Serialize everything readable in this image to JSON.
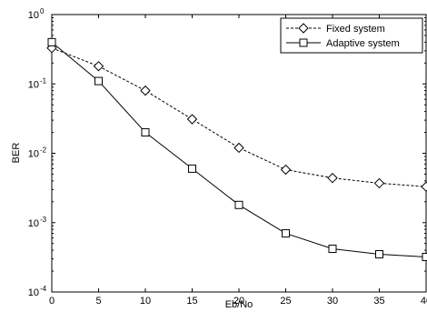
{
  "chart_data": {
    "type": "line",
    "xlabel": "Eb/No",
    "ylabel": "BER",
    "x": [
      0,
      5,
      10,
      15,
      20,
      25,
      30,
      35,
      40
    ],
    "xlim": [
      0,
      40
    ],
    "ylim": [
      0.0001,
      1
    ],
    "y_scale": "log",
    "grid": false,
    "legend_position": "top-right",
    "x_ticks": [
      "0",
      "5",
      "10",
      "15",
      "20",
      "25",
      "30",
      "35",
      "40"
    ],
    "y_ticks": [
      {
        "base": "10",
        "exp": "0",
        "value": 1
      },
      {
        "base": "10",
        "exp": "-1",
        "value": 0.1
      },
      {
        "base": "10",
        "exp": "-2",
        "value": 0.01
      },
      {
        "base": "10",
        "exp": "-3",
        "value": 0.001
      },
      {
        "base": "10",
        "exp": "-4",
        "value": 0.0001
      }
    ],
    "series": [
      {
        "name": "Fixed system",
        "line_style": "dashed",
        "marker": "diamond",
        "color": "#000000",
        "values": [
          0.33,
          0.18,
          0.08,
          0.031,
          0.012,
          0.0058,
          0.0044,
          0.0037,
          0.0033
        ]
      },
      {
        "name": "Adaptive system",
        "line_style": "solid",
        "marker": "square",
        "color": "#000000",
        "values": [
          0.4,
          0.11,
          0.02,
          0.006,
          0.0018,
          0.0007,
          0.00042,
          0.00035,
          0.00032
        ]
      }
    ]
  }
}
